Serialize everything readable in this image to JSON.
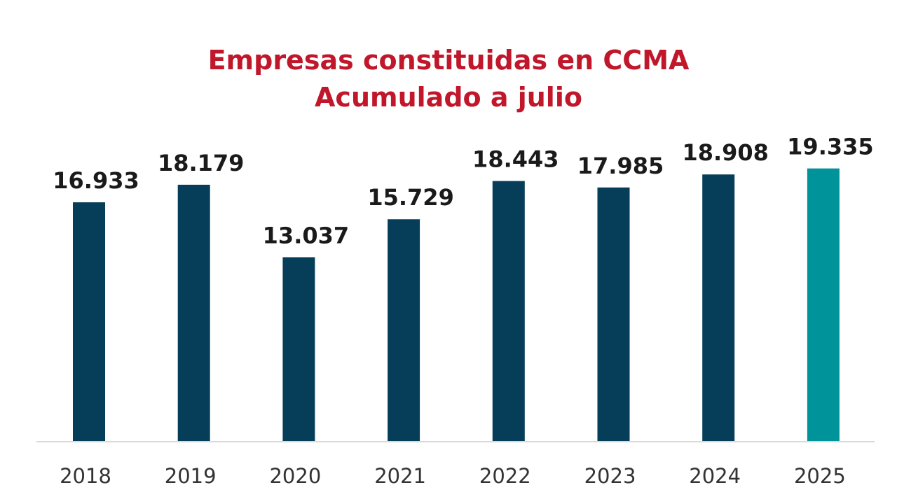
{
  "chart_data": {
    "type": "bar",
    "title": "Empresas constituidas en CCMA",
    "subtitle": "Acumulado a julio",
    "categories": [
      "2018",
      "2019",
      "2020",
      "2021",
      "2022",
      "2023",
      "2024",
      "2025"
    ],
    "values": [
      16933,
      18179,
      13037,
      15729,
      18443,
      17985,
      18908,
      19335
    ],
    "value_labels": [
      "16.933",
      "18.179",
      "13.037",
      "15.729",
      "18.443",
      "17.985",
      "18.908",
      "19.335"
    ],
    "ylim": [
      0,
      20000
    ],
    "grid": false,
    "legend": "none",
    "xlabel": "",
    "ylabel": ""
  },
  "colors": {
    "title": "#c0172b",
    "bar": "#063e5a",
    "bar_highlight": "#00939a",
    "value_label": "#1a1a1a",
    "category_label": "#333333",
    "baseline": "#d9d9d9"
  },
  "highlight_index": 7
}
